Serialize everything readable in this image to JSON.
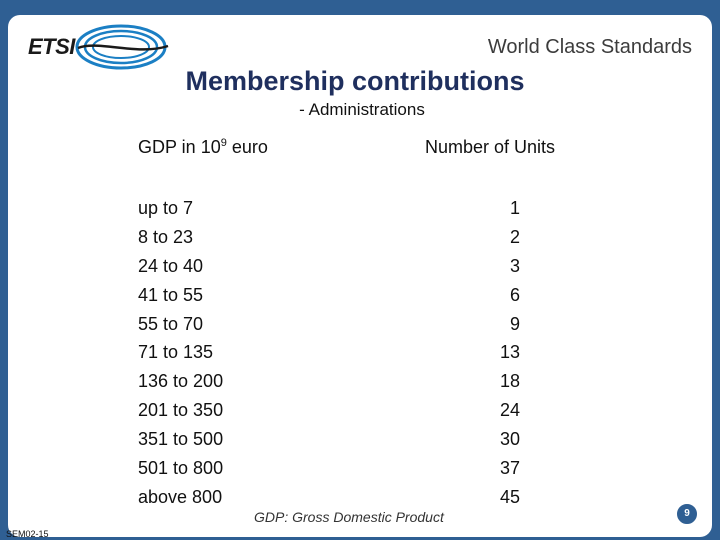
{
  "header": {
    "logo_text": "ETSI",
    "tagline": "World Class Standards"
  },
  "title": "Membership contributions",
  "subtitle": "- Administrations",
  "table": {
    "col_gdp_header": "GDP in 10",
    "col_gdp_header_sup": "9",
    "col_gdp_header_suffix": " euro",
    "col_units_header": "Number of Units",
    "rows": [
      {
        "gdp": "up to 7",
        "units": "1"
      },
      {
        "gdp": "8 to 23",
        "units": "2"
      },
      {
        "gdp": "24 to 40",
        "units": "3"
      },
      {
        "gdp": "41 to 55",
        "units": "6"
      },
      {
        "gdp": "55 to 70",
        "units": "9"
      },
      {
        "gdp": "71 to 135",
        "units": "13"
      },
      {
        "gdp": "136 to 200",
        "units": "18"
      },
      {
        "gdp": "201 to 350",
        "units": "24"
      },
      {
        "gdp": "351 to 500",
        "units": "30"
      },
      {
        "gdp": "501 to 800",
        "units": "37"
      },
      {
        "gdp": "above 800",
        "units": "45"
      }
    ]
  },
  "footnote": "GDP: Gross Domestic Product",
  "page_number": "9",
  "slide_ref": "SEM02-15",
  "colors": {
    "frame": "#2f5f93",
    "title": "#1f2f5e",
    "logo_swoosh": "#1b7fc4"
  }
}
